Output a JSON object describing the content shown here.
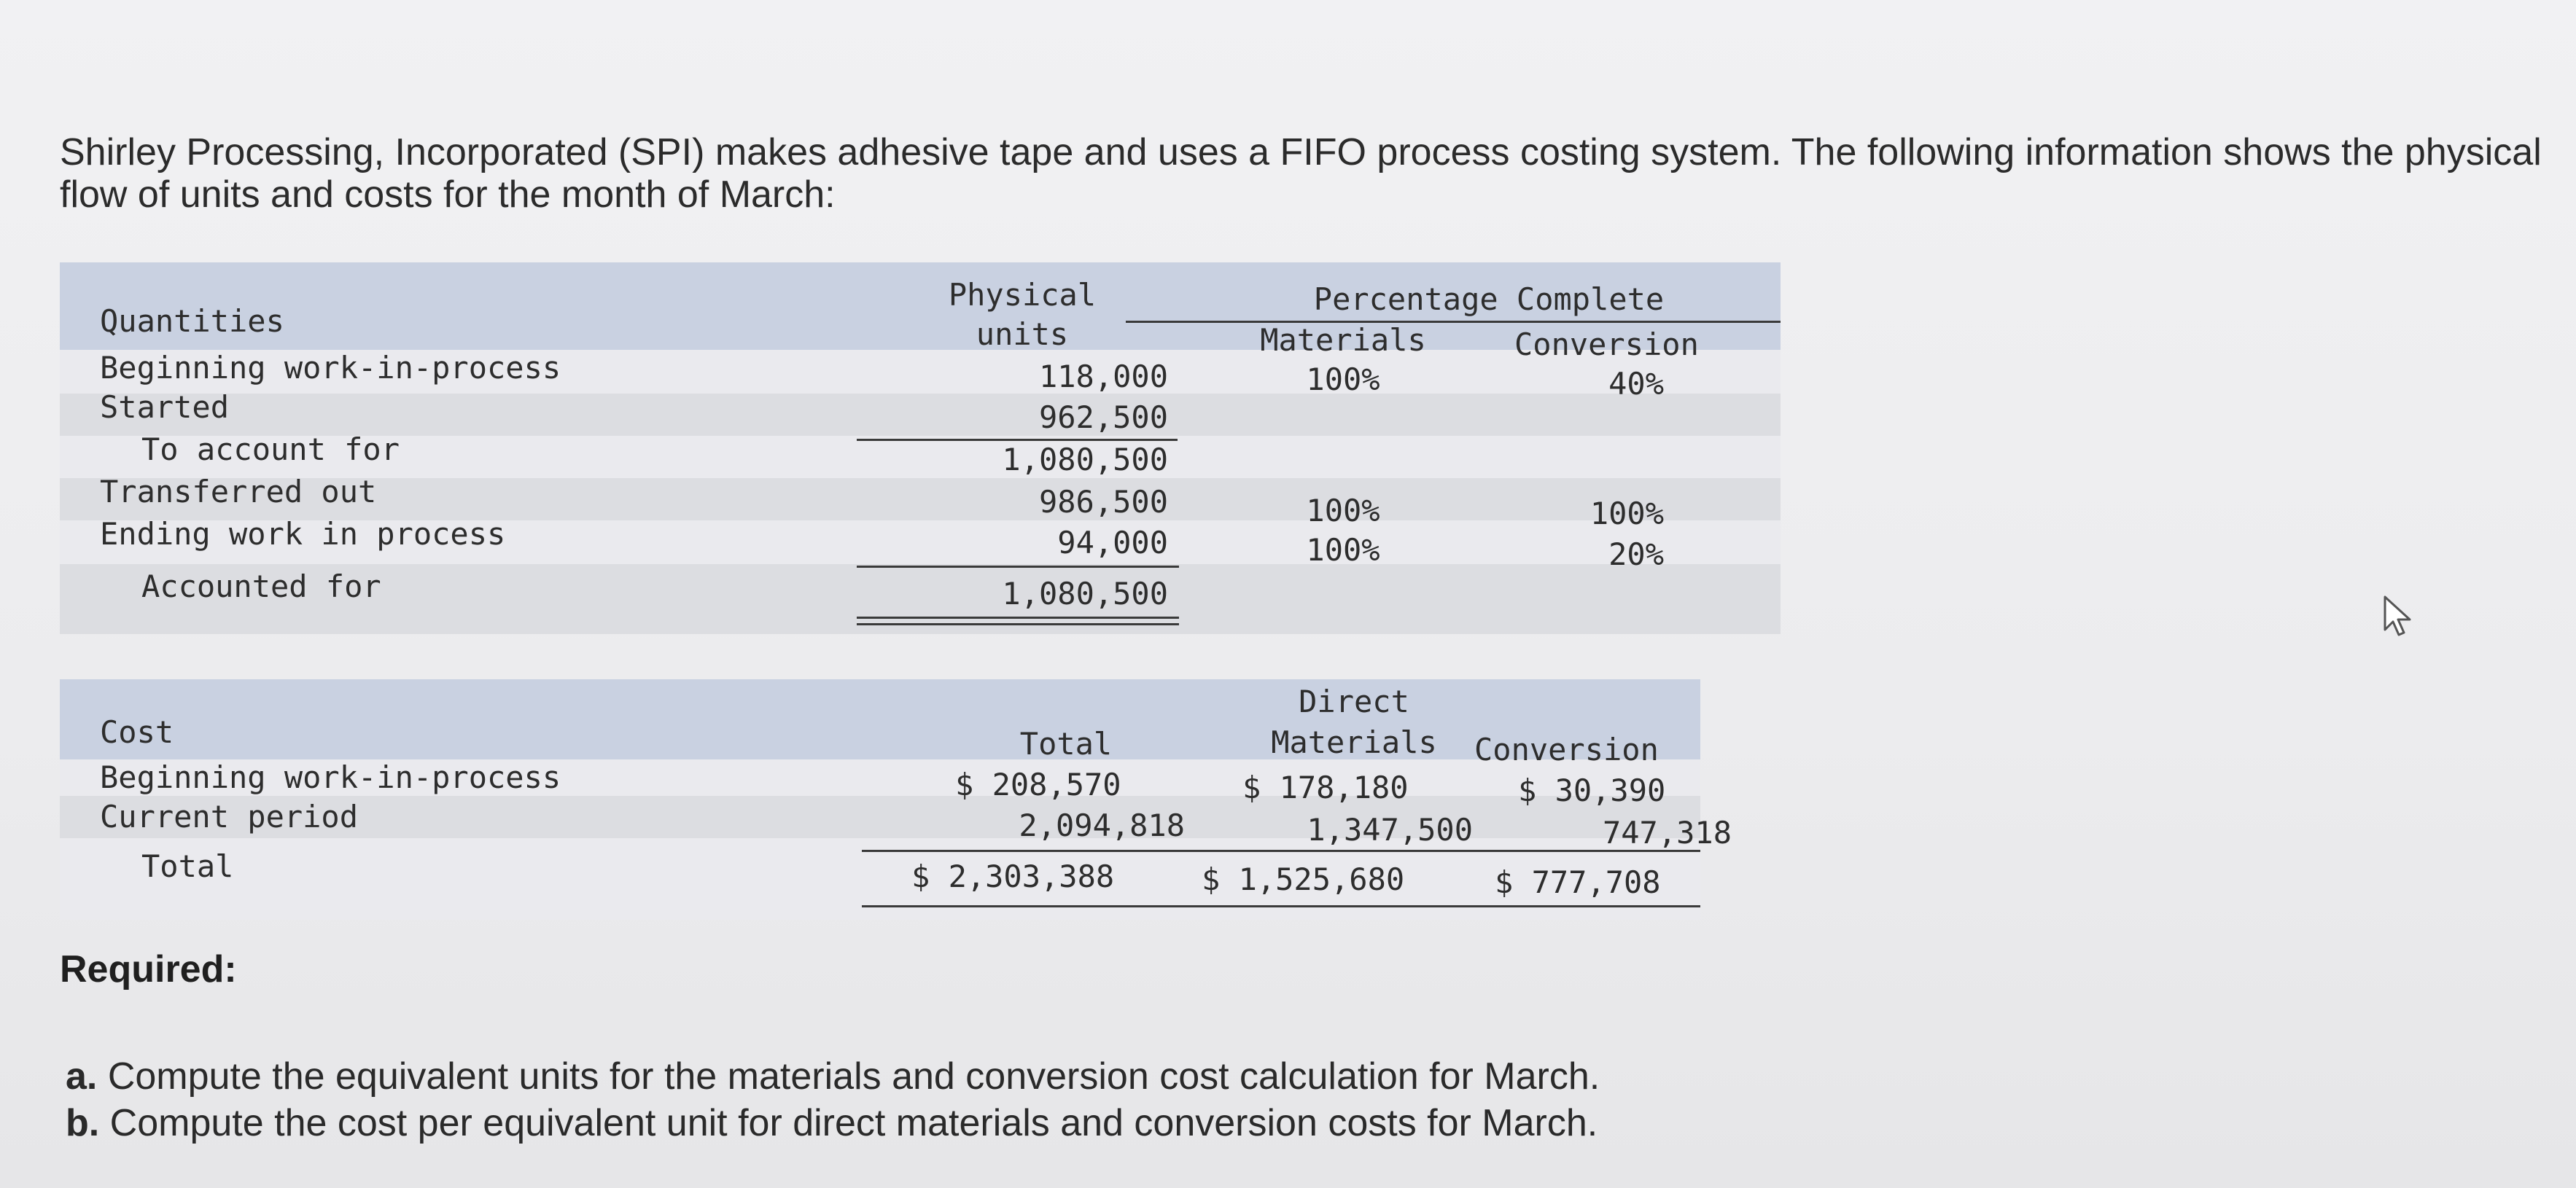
{
  "intro": "Shirley Processing, Incorporated (SPI) makes adhesive tape and uses a FIFO process costing system. The following information shows the physical flow of units and costs for the month of March:",
  "quantities": {
    "header": {
      "label": "Quantities",
      "physical_line1": "Physical",
      "physical_line2": "units",
      "percentage_complete": "Percentage Complete",
      "materials": "Materials",
      "conversion": "Conversion"
    },
    "rows": [
      {
        "label": "Beginning work-in-process",
        "units": "118,000",
        "materials": "100%",
        "conversion": "40%"
      },
      {
        "label": "Started",
        "units": "962,500",
        "materials": "",
        "conversion": ""
      },
      {
        "label": "To account for",
        "units": "1,080,500",
        "materials": "",
        "conversion": ""
      },
      {
        "label": "Transferred out",
        "units": "986,500",
        "materials": "100%",
        "conversion": "100%"
      },
      {
        "label": "Ending work in process",
        "units": "94,000",
        "materials": "100%",
        "conversion": "20%"
      },
      {
        "label": "Accounted for",
        "units": "1,080,500",
        "materials": "",
        "conversion": ""
      }
    ]
  },
  "cost": {
    "header": {
      "label": "Cost",
      "total": "Total",
      "direct_line1": "Direct",
      "direct_line2": "Materials",
      "conversion": "Conversion"
    },
    "rows": [
      {
        "label": "Beginning work-in-process",
        "total": "$ 208,570",
        "materials": "$ 178,180",
        "conversion": "$ 30,390"
      },
      {
        "label": "Current period",
        "total": "2,094,818",
        "materials": "1,347,500",
        "conversion": "747,318"
      },
      {
        "label": "Total",
        "total": "$ 2,303,388",
        "materials": "$ 1,525,680",
        "conversion": "$ 777,708"
      }
    ]
  },
  "required": {
    "heading": "Required:",
    "a_marker": "a.",
    "a_text": "Compute the equivalent units for the materials and conversion cost calculation for March.",
    "b_marker": "b.",
    "b_text": "Compute the cost per equivalent unit for direct materials and conversion costs for March."
  }
}
